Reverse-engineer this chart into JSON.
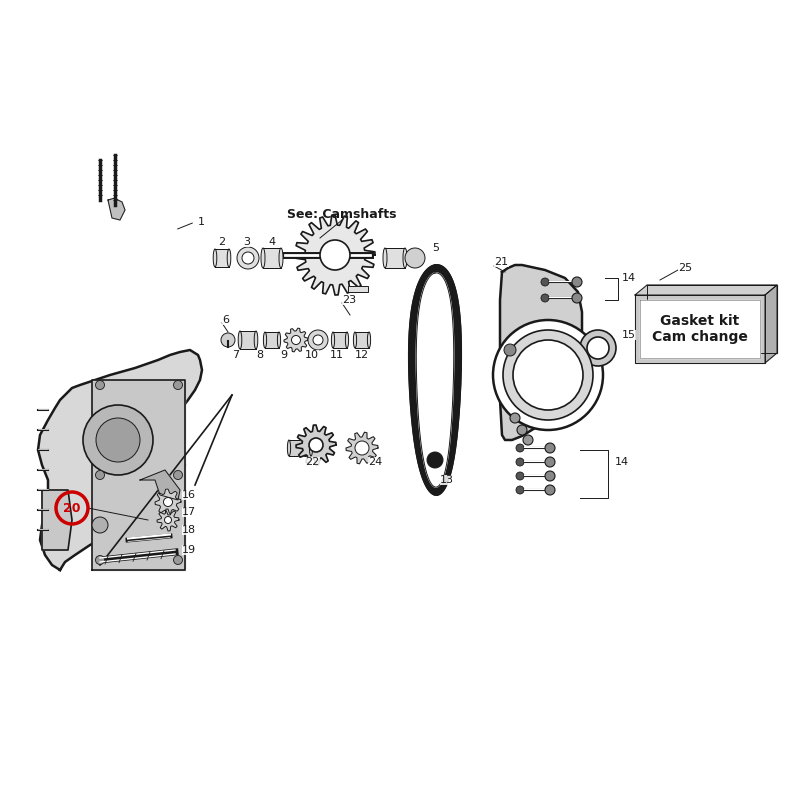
{
  "bg_color": "#ffffff",
  "line_color": "#1a1a1a",
  "highlight_color": "#cc0000",
  "gasket_text": "Gasket kit\nCam change",
  "see_camshafts_text": "See: Camshafts",
  "lw_thin": 0.7,
  "lw_med": 1.2,
  "lw_thick": 1.8,
  "lw_ultra": 2.5
}
